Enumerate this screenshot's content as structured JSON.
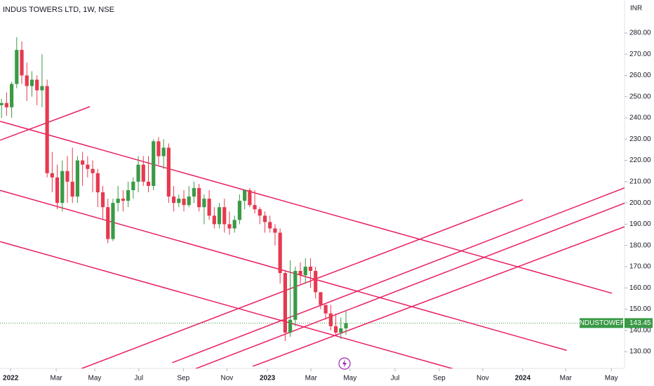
{
  "chart_data": {
    "type": "candlestick",
    "title": "INDUS TOWERS LTD, 1W, NSE",
    "y_axis_label": "INR",
    "up_color": "#3a9a46",
    "down_color": "#e63950",
    "line_color": "#e91e63",
    "categories": [
      null,
      null,
      null,
      null,
      null,
      null,
      null,
      null,
      null,
      null,
      null,
      null,
      null,
      null,
      null,
      null,
      null,
      null,
      null,
      null,
      null,
      null,
      null,
      null,
      null,
      null,
      null,
      null,
      null,
      null,
      null,
      null,
      null,
      null,
      null,
      null,
      null,
      null,
      null,
      null,
      null,
      null,
      null,
      null,
      null,
      null,
      null,
      null,
      null,
      null,
      null,
      null,
      null,
      null,
      null,
      null,
      null,
      null,
      null,
      null,
      null,
      null,
      null,
      null,
      null,
      null,
      null,
      null,
      null
    ],
    "open": [
      246,
      247,
      245,
      256,
      272,
      260,
      255,
      258,
      253,
      255,
      214,
      212,
      200,
      215,
      210,
      203,
      220,
      218,
      216,
      214,
      205,
      198,
      183,
      200,
      202,
      201,
      206,
      210,
      218,
      210,
      208,
      229,
      222,
      226,
      203,
      200,
      202,
      199,
      203,
      207,
      198,
      202,
      194,
      190,
      198,
      190,
      188,
      192,
      201,
      206,
      199,
      197,
      194,
      191,
      188,
      186,
      167,
      139,
      145,
      168,
      166,
      170,
      168,
      158,
      152,
      148,
      142,
      139,
      141
    ],
    "high": [
      249,
      252,
      257,
      278,
      276,
      266,
      262,
      260,
      270,
      258,
      224,
      218,
      220,
      222,
      226,
      222,
      224,
      222,
      220,
      216,
      208,
      202,
      202,
      208,
      206,
      210,
      212,
      222,
      222,
      222,
      230,
      231,
      230,
      228,
      208,
      204,
      206,
      208,
      210,
      209,
      204,
      206,
      198,
      200,
      202,
      196,
      194,
      204,
      206,
      207,
      206,
      198,
      196,
      194,
      190,
      188,
      168,
      173,
      170,
      172,
      174,
      174,
      170,
      158,
      152,
      152,
      148,
      146,
      149
    ],
    "low": [
      240,
      241,
      240,
      254,
      256,
      248,
      250,
      246,
      245,
      212,
      205,
      197,
      196,
      200,
      200,
      200,
      208,
      212,
      205,
      198,
      192,
      181,
      182,
      196,
      196,
      198,
      202,
      205,
      208,
      205,
      206,
      218,
      216,
      200,
      196,
      198,
      196,
      198,
      200,
      196,
      190,
      192,
      188,
      188,
      186,
      185,
      186,
      190,
      197,
      198,
      195,
      190,
      186,
      186,
      180,
      162,
      135,
      137,
      142,
      162,
      162,
      160,
      155,
      150,
      145,
      140,
      138,
      136,
      138
    ],
    "close": [
      247,
      245,
      256,
      272,
      260,
      255,
      258,
      253,
      255,
      214,
      212,
      200,
      215,
      210,
      203,
      220,
      218,
      216,
      214,
      205,
      198,
      183,
      200,
      202,
      201,
      206,
      210,
      218,
      210,
      208,
      229,
      222,
      226,
      203,
      200,
      202,
      199,
      203,
      207,
      198,
      202,
      194,
      190,
      198,
      190,
      188,
      192,
      201,
      206,
      199,
      197,
      194,
      191,
      188,
      186,
      167,
      139,
      145,
      168,
      166,
      170,
      168,
      158,
      152,
      148,
      142,
      139,
      141,
      143.45
    ],
    "xlim": [
      -0.3,
      123
    ],
    "xticks": [
      {
        "value": 1.8,
        "label": "2022"
      },
      {
        "value": 10.8,
        "label": "Mar"
      },
      {
        "value": 18.4,
        "label": "May"
      },
      {
        "value": 27.1,
        "label": "Jul"
      },
      {
        "value": 35.9,
        "label": "Sep"
      },
      {
        "value": 44.5,
        "label": "Nov"
      },
      {
        "value": 52.5,
        "label": "2023"
      },
      {
        "value": 61.1,
        "label": "Mar"
      },
      {
        "value": 68.8,
        "label": "May"
      },
      {
        "value": 77.7,
        "label": "Jul"
      },
      {
        "value": 86.4,
        "label": "Sep"
      },
      {
        "value": 95,
        "label": "Nov"
      },
      {
        "value": 102.9,
        "label": "2024"
      },
      {
        "value": 111.4,
        "label": "Mar"
      },
      {
        "value": 120.4,
        "label": "May"
      }
    ],
    "ylim": [
      122.1,
      295.5
    ],
    "yticks": [
      {
        "value": 130,
        "label": "130.00"
      },
      {
        "value": 140,
        "label": "140.00"
      },
      {
        "value": 150,
        "label": "150.00"
      },
      {
        "value": 160,
        "label": "160.00"
      },
      {
        "value": 170,
        "label": "170.00"
      },
      {
        "value": 180,
        "label": "180.00"
      },
      {
        "value": 190,
        "label": "190.00"
      },
      {
        "value": 200,
        "label": "200.00"
      },
      {
        "value": 210,
        "label": "210.00"
      },
      {
        "value": 220,
        "label": "220.00"
      },
      {
        "value": 230,
        "label": "230.00"
      },
      {
        "value": 240,
        "label": "240.00"
      },
      {
        "value": 250,
        "label": "250.00"
      },
      {
        "value": 260,
        "label": "260.00"
      },
      {
        "value": 270,
        "label": "270.00"
      },
      {
        "value": 280,
        "label": "280.00"
      }
    ],
    "trend_lines": [
      {
        "x": [
          -0.28,
          17.45
        ],
        "y": [
          229.5,
          245.3
        ]
      },
      {
        "x": [
          -0.28,
          120.5
        ],
        "y": [
          238.4,
          157.5
        ]
      },
      {
        "x": [
          -0.28,
          111.6
        ],
        "y": [
          205.9,
          130.6
        ]
      },
      {
        "x": [
          -0.28,
          89.2
        ],
        "y": [
          181.8,
          121.9
        ]
      },
      {
        "x": [
          15.65,
          102.9
        ],
        "y": [
          121.9,
          201.5
        ]
      },
      {
        "x": [
          33.7,
          123
        ],
        "y": [
          124.8,
          207.1
        ]
      },
      {
        "x": [
          37.8,
          123
        ],
        "y": [
          121.5,
          199.9
        ]
      },
      {
        "x": [
          49.6,
          123
        ],
        "y": [
          123.1,
          188.8
        ]
      }
    ],
    "last_price": {
      "symbol": "INDUSTOWER",
      "value": 143.45,
      "label": "143.45",
      "color": "#3a9a46"
    }
  }
}
